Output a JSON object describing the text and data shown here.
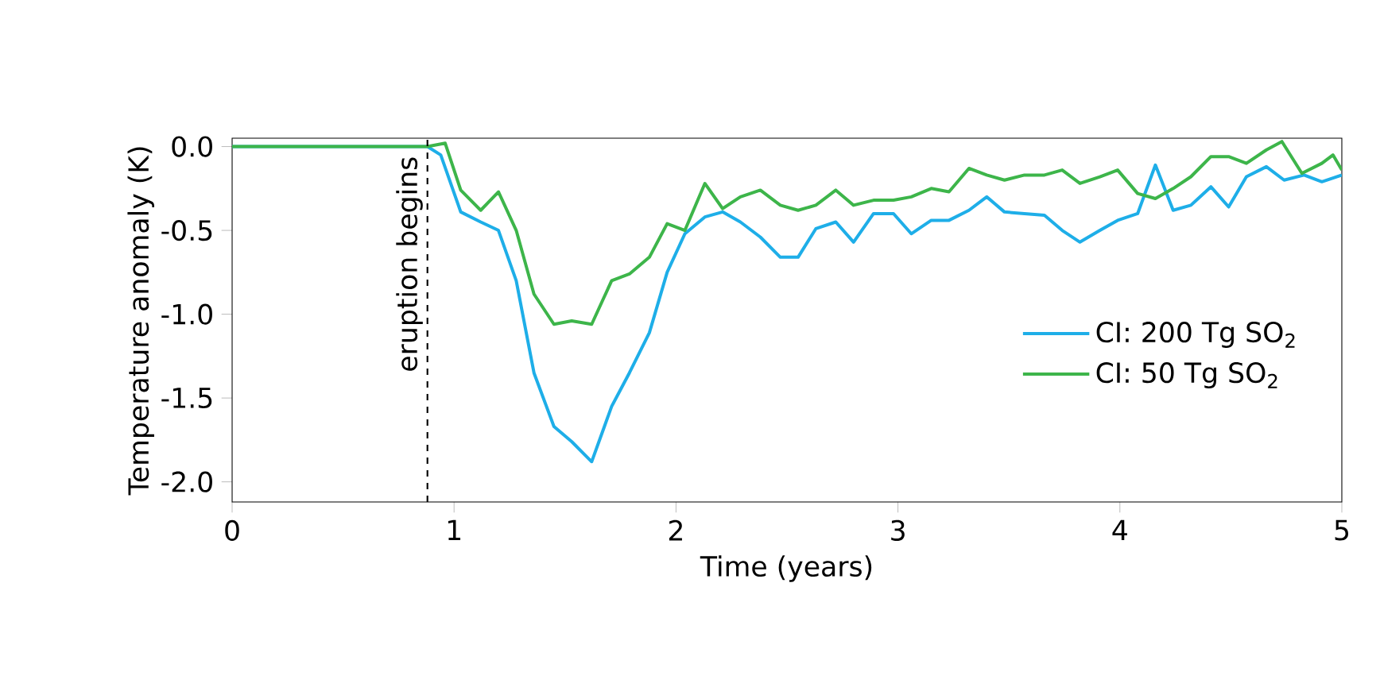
{
  "chart_data": {
    "type": "line",
    "xlabel": "Time (years)",
    "ylabel": "Temperature anomaly (K)",
    "xlim": [
      0,
      5
    ],
    "ylim": [
      -2.12,
      0.05
    ],
    "xticks": [
      0,
      1,
      2,
      3,
      4,
      5
    ],
    "yticks": [
      {
        "value": 0,
        "label": "0.0"
      },
      {
        "value": -0.5,
        "label": "-0.5"
      },
      {
        "value": -1,
        "label": "-1.0"
      },
      {
        "value": -1.5,
        "label": "-1.5"
      },
      {
        "value": -2,
        "label": "-2.0"
      }
    ],
    "grid": false,
    "legend": "right",
    "line_style": "solid",
    "marker": "none",
    "ref_lines": [
      {
        "axis": "x",
        "value": 0.88,
        "label": "eruption begins",
        "color": "#000000",
        "line_style": "dashed"
      }
    ],
    "series": [
      {
        "name": "CI: 200 Tg SO$_{2}$",
        "color": "#1eaee8",
        "x": [
          0,
          0.88,
          0.94,
          1.03,
          1.12,
          1.2,
          1.28,
          1.36,
          1.45,
          1.53,
          1.62,
          1.71,
          1.79,
          1.88,
          1.96,
          2.04,
          2.13,
          2.21,
          2.29,
          2.38,
          2.47,
          2.55,
          2.63,
          2.72,
          2.8,
          2.89,
          2.98,
          3.06,
          3.15,
          3.23,
          3.32,
          3.4,
          3.48,
          3.57,
          3.66,
          3.74,
          3.82,
          3.91,
          3.99,
          4.08,
          4.16,
          4.24,
          4.32,
          4.41,
          4.49,
          4.57,
          4.66,
          4.74,
          4.83,
          4.91,
          5
        ],
        "values": [
          0,
          0,
          -0.05,
          -0.39,
          -0.45,
          -0.5,
          -0.8,
          -1.35,
          -1.67,
          -1.76,
          -1.88,
          -1.55,
          -1.35,
          -1.11,
          -0.75,
          -0.52,
          -0.42,
          -0.39,
          -0.45,
          -0.54,
          -0.66,
          -0.66,
          -0.49,
          -0.45,
          -0.57,
          -0.4,
          -0.4,
          -0.52,
          -0.44,
          -0.44,
          -0.38,
          -0.3,
          -0.39,
          -0.4,
          -0.41,
          -0.5,
          -0.57,
          -0.5,
          -0.44,
          -0.4,
          -0.11,
          -0.38,
          -0.35,
          -0.24,
          -0.36,
          -0.18,
          -0.12,
          -0.2,
          -0.17,
          -0.21,
          -0.17
        ]
      },
      {
        "name": "CI: 50 Tg SO$_{2}$",
        "color": "#3db54a",
        "x": [
          0,
          0.88,
          0.96,
          1.03,
          1.12,
          1.2,
          1.28,
          1.36,
          1.45,
          1.53,
          1.62,
          1.71,
          1.79,
          1.88,
          1.96,
          2.04,
          2.13,
          2.21,
          2.29,
          2.38,
          2.47,
          2.55,
          2.63,
          2.72,
          2.8,
          2.89,
          2.98,
          3.06,
          3.15,
          3.23,
          3.32,
          3.4,
          3.48,
          3.57,
          3.66,
          3.74,
          3.82,
          3.91,
          3.99,
          4.08,
          4.16,
          4.24,
          4.32,
          4.41,
          4.49,
          4.57,
          4.66,
          4.73,
          4.82,
          4.91,
          4.96,
          5
        ],
        "values": [
          0,
          0,
          0.02,
          -0.26,
          -0.38,
          -0.27,
          -0.5,
          -0.88,
          -1.06,
          -1.04,
          -1.06,
          -0.8,
          -0.76,
          -0.66,
          -0.46,
          -0.5,
          -0.22,
          -0.37,
          -0.3,
          -0.26,
          -0.35,
          -0.38,
          -0.35,
          -0.26,
          -0.35,
          -0.32,
          -0.32,
          -0.3,
          -0.25,
          -0.27,
          -0.13,
          -0.17,
          -0.2,
          -0.17,
          -0.17,
          -0.14,
          -0.22,
          -0.18,
          -0.14,
          -0.28,
          -0.31,
          -0.25,
          -0.18,
          -0.06,
          -0.06,
          -0.1,
          -0.02,
          0.03,
          -0.16,
          -0.1,
          -0.05,
          -0.14
        ]
      }
    ]
  }
}
